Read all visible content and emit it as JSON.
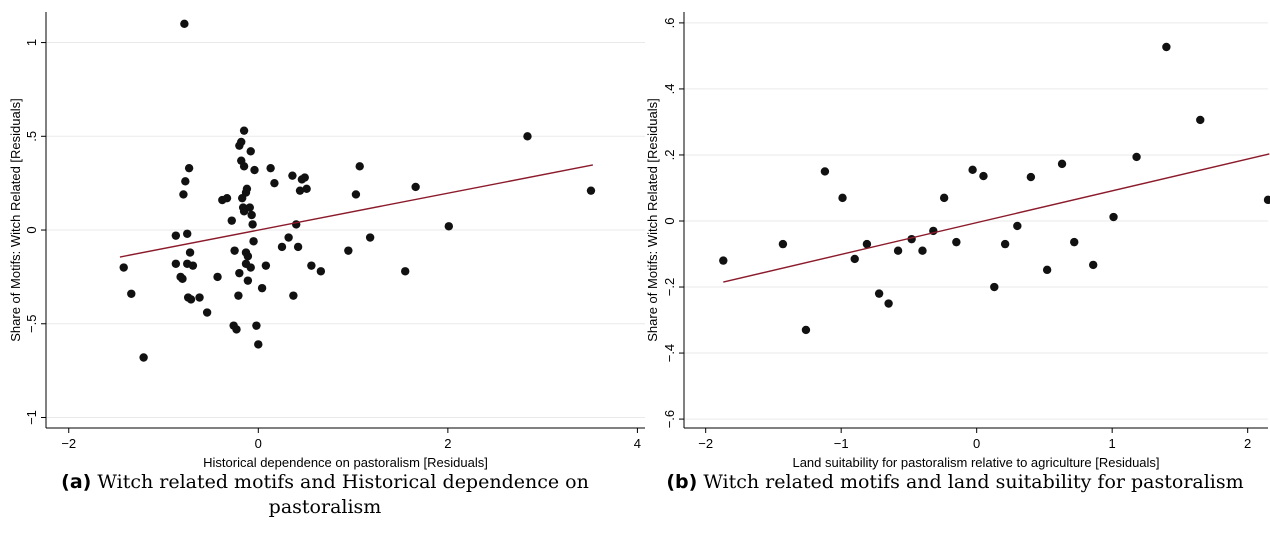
{
  "chart_data": [
    {
      "type": "scatter",
      "caption_label": "(a)",
      "caption": "Witch related motifs and Historical dependence on pastoralism",
      "x_label": "Historical dependence on pastoralism [Residuals]",
      "y_label": "Share of Motifs: Witch Related [Residuals]",
      "xlim": [
        -2.24,
        4.08
      ],
      "ylim": [
        -1.056,
        1.163
      ],
      "xticks": [
        {
          "value": -2,
          "label": "−2"
        },
        0,
        2,
        4
      ],
      "yticks": [
        {
          "value": -1,
          "label": "−1"
        },
        {
          "value": -0.5,
          "label": "−.5"
        },
        0,
        {
          "value": 0.5,
          "label": ".5"
        },
        1
      ],
      "grid": true,
      "color": "#111111",
      "x": [
        -0.78,
        -1.42,
        -1.34,
        -1.21,
        -0.87,
        -0.79,
        -0.77,
        -0.73,
        -0.75,
        -0.87,
        -0.82,
        -0.8,
        -0.75,
        -0.69,
        -0.72,
        -0.74,
        -0.71,
        -0.62,
        -0.54,
        -0.43,
        -0.38,
        -0.33,
        -0.28,
        -0.26,
        -0.23,
        -0.25,
        -0.21,
        -0.2,
        -0.2,
        -0.18,
        -0.17,
        -0.15,
        -0.18,
        -0.15,
        -0.16,
        -0.15,
        -0.13,
        -0.12,
        -0.13,
        -0.11,
        -0.13,
        -0.11,
        -0.08,
        -0.09,
        -0.07,
        -0.08,
        -0.06,
        -0.05,
        -0.04,
        -0.02,
        0.0,
        0.04,
        0.08,
        0.13,
        0.17,
        0.25,
        0.36,
        0.32,
        0.37,
        0.4,
        0.42,
        0.44,
        0.46,
        0.49,
        0.51,
        0.56,
        0.66,
        0.95,
        1.03,
        1.07,
        1.18,
        1.55,
        1.66,
        2.01,
        2.84,
        3.51
      ],
      "y": [
        1.1,
        -0.2,
        -0.34,
        -0.68,
        -0.03,
        0.19,
        0.26,
        0.33,
        -0.02,
        -0.18,
        -0.25,
        -0.26,
        -0.18,
        -0.19,
        -0.12,
        -0.36,
        -0.37,
        -0.36,
        -0.44,
        -0.25,
        0.16,
        0.17,
        0.05,
        -0.51,
        -0.53,
        -0.11,
        -0.35,
        -0.23,
        0.45,
        0.47,
        0.17,
        0.53,
        0.37,
        0.34,
        0.12,
        0.1,
        0.2,
        0.22,
        -0.12,
        -0.14,
        -0.18,
        -0.27,
        -0.2,
        0.12,
        0.08,
        0.42,
        0.03,
        -0.06,
        0.32,
        -0.51,
        -0.61,
        -0.31,
        -0.19,
        0.33,
        0.25,
        -0.09,
        0.29,
        -0.04,
        -0.35,
        0.03,
        -0.09,
        0.21,
        0.27,
        0.28,
        0.22,
        -0.19,
        -0.22,
        -0.11,
        0.19,
        0.34,
        -0.04,
        -0.22,
        0.23,
        0.02,
        0.5,
        0.21
      ],
      "fit": {
        "color": "#8b1a2b",
        "x": [
          -1.46,
          3.53
        ],
        "y": [
          -0.144,
          0.347
        ]
      }
    },
    {
      "type": "scatter",
      "caption_label": "(b)",
      "caption": "Witch related motifs and land suitability for pastoralism",
      "x_label": "Land suitability for pastoralism relative to agriculture [Residuals]",
      "y_label": "Share of Motifs: Witch Related [Residuals]",
      "xlim": [
        -2.16,
        2.15
      ],
      "ylim": [
        -0.627,
        0.633
      ],
      "xticks": [
        {
          "value": -2,
          "label": "−2"
        },
        {
          "value": -1,
          "label": "−1"
        },
        0,
        1,
        2
      ],
      "yticks": [
        {
          "value": -0.6,
          "label": "−.6"
        },
        {
          "value": -0.4,
          "label": "−.4"
        },
        {
          "value": -0.2,
          "label": "−.2"
        },
        0,
        {
          "value": 0.2,
          "label": ".2"
        },
        {
          "value": 0.4,
          "label": ".4"
        },
        {
          "value": 0.6,
          "label": ".6"
        }
      ],
      "grid": true,
      "color": "#111111",
      "x": [
        -1.87,
        -1.43,
        -1.26,
        -1.12,
        -0.99,
        -0.9,
        -0.81,
        -0.72,
        -0.65,
        -0.58,
        -0.48,
        -0.4,
        -0.32,
        -0.24,
        -0.15,
        -0.03,
        0.05,
        0.13,
        0.21,
        0.3,
        0.4,
        0.52,
        0.63,
        0.72,
        0.86,
        1.01,
        1.18,
        1.4,
        1.65,
        2.15
      ],
      "y": [
        -0.12,
        -0.07,
        -0.33,
        0.15,
        0.07,
        -0.115,
        -0.07,
        -0.22,
        -0.25,
        -0.09,
        -0.055,
        -0.09,
        -0.03,
        0.07,
        -0.064,
        0.155,
        0.136,
        -0.2,
        -0.07,
        -0.015,
        0.133,
        -0.148,
        0.173,
        -0.064,
        -0.133,
        0.012,
        0.194,
        0.527,
        0.306,
        0.064
      ],
      "fit": {
        "color": "#8b1a2b",
        "x": [
          -1.87,
          2.16
        ],
        "y": [
          -0.185,
          0.203
        ]
      }
    }
  ]
}
